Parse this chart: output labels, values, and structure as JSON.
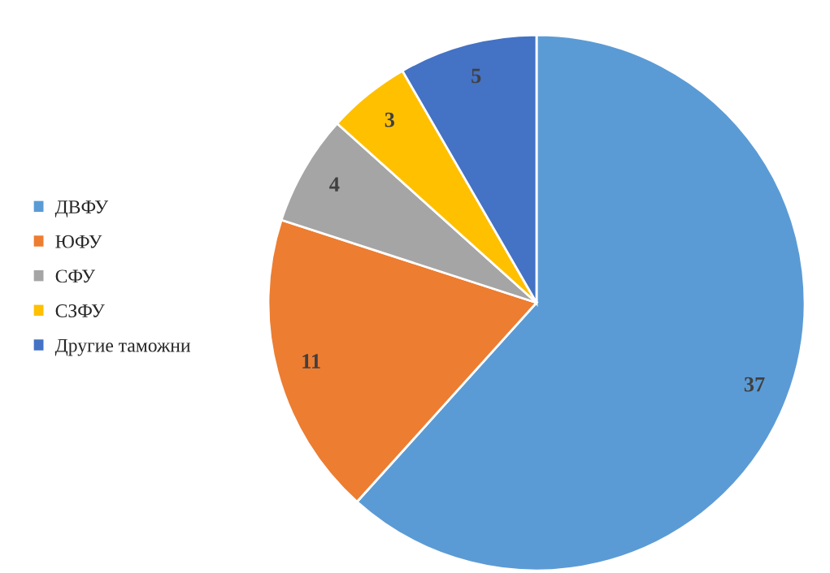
{
  "chart_data": {
    "type": "pie",
    "categories": [
      "ДВФУ",
      "ЮФУ",
      "СФУ",
      "СЗФУ",
      "Другие таможни"
    ],
    "values": [
      37,
      11,
      4,
      3,
      5
    ],
    "colors": [
      "#5b9bd5",
      "#ed7d31",
      "#a5a5a5",
      "#ffc000",
      "#4472c4"
    ],
    "data_labels": true,
    "legend": "left"
  }
}
